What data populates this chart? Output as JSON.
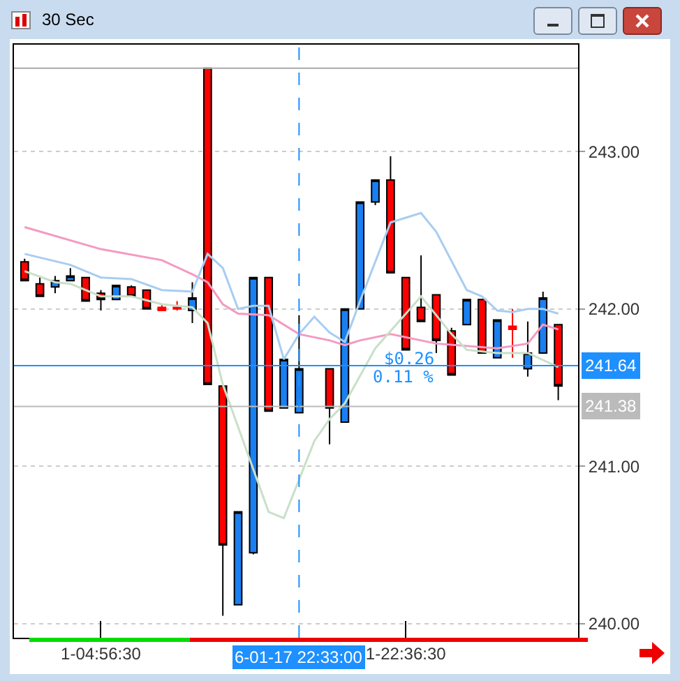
{
  "chart_data": {
    "type": "candlestick",
    "title": "30 Sec",
    "categories": [
      null,
      null,
      null,
      null,
      null,
      "1-04:56:30",
      null,
      null,
      null,
      null,
      null,
      null,
      null,
      null,
      null,
      null,
      null,
      null,
      "6-01-17 22:33:00",
      null,
      null,
      null,
      null,
      null,
      null,
      "1-22:36:30",
      null,
      null,
      null,
      null,
      null,
      null,
      null,
      null,
      null,
      null
    ],
    "ohlc": [
      [
        242.3,
        242.32,
        242.18,
        242.18
      ],
      [
        242.16,
        242.21,
        242.08,
        242.08
      ],
      [
        242.14,
        242.21,
        242.1,
        242.18
      ],
      [
        242.18,
        242.26,
        242.18,
        242.21
      ],
      [
        242.2,
        242.2,
        242.05,
        242.05
      ],
      [
        242.1,
        242.12,
        241.99,
        242.06
      ],
      [
        242.06,
        242.15,
        242.06,
        242.15
      ],
      [
        242.14,
        242.15,
        242.08,
        242.08
      ],
      [
        242.12,
        242.12,
        242.0,
        242.0
      ],
      [
        242.01,
        242.03,
        241.99,
        241.99
      ],
      [
        242.01,
        242.05,
        241.99,
        242.0
      ],
      [
        241.99,
        242.17,
        241.91,
        242.07
      ],
      [
        243.53,
        243.53,
        241.52,
        241.52
      ],
      [
        241.51,
        241.51,
        240.05,
        240.5
      ],
      [
        240.12,
        240.71,
        240.12,
        240.71
      ],
      [
        240.45,
        242.2,
        240.44,
        242.2
      ],
      [
        242.2,
        242.2,
        241.35,
        241.35
      ],
      [
        241.37,
        241.68,
        241.37,
        241.68
      ],
      [
        241.34,
        241.96,
        241.34,
        241.62
      ],
      null,
      [
        241.62,
        241.62,
        241.14,
        241.37
      ],
      [
        241.28,
        242.0,
        241.28,
        242.0
      ],
      [
        242.0,
        242.68,
        242.0,
        242.68
      ],
      [
        242.68,
        242.82,
        242.66,
        242.82
      ],
      [
        242.82,
        242.97,
        242.23,
        242.23
      ],
      [
        242.2,
        242.2,
        241.74,
        241.74
      ],
      [
        242.01,
        242.34,
        241.92,
        241.92
      ],
      [
        242.09,
        242.09,
        241.72,
        241.8
      ],
      [
        241.86,
        241.88,
        241.58,
        241.58
      ],
      [
        241.9,
        242.06,
        241.9,
        242.06
      ],
      [
        242.06,
        242.06,
        241.72,
        241.72
      ],
      [
        241.69,
        241.93,
        241.69,
        241.93
      ],
      [
        241.89,
        242.0,
        241.69,
        241.87
      ],
      [
        241.62,
        241.92,
        241.57,
        241.72
      ],
      [
        241.72,
        242.11,
        241.72,
        242.07
      ],
      [
        241.9,
        241.9,
        241.42,
        241.51
      ]
    ],
    "colors": [
      "#ff0000",
      "#ff0000",
      "#1a7ff0",
      "#1a7ff0",
      "#ff0000",
      "#ff0000",
      "#1a7ff0",
      "#ff0000",
      "#ff0000",
      "#ff0000",
      "#ff0000",
      "#1a7ff0",
      "#ff0000",
      "#ff0000",
      "#1a7ff0",
      "#1a7ff0",
      "#ff0000",
      "#1a7ff0",
      "#1a7ff0",
      null,
      "#ff0000",
      "#1a7ff0",
      "#1a7ff0",
      "#1a7ff0",
      "#ff0000",
      "#ff0000",
      "#ff0000",
      "#ff0000",
      "#ff0000",
      "#1a7ff0",
      "#ff0000",
      "#1a7ff0",
      "#ff0000",
      "#1a7ff0",
      "#1a7ff0",
      "#ff0000"
    ],
    "series": [
      {
        "type": "line",
        "color": "#f49ac1",
        "values": [
          242.52,
          null,
          null,
          null,
          null,
          242.38,
          null,
          null,
          null,
          242.31,
          null,
          242.22,
          242.17,
          242.03,
          241.97,
          null,
          241.96,
          null,
          241.84,
          null,
          241.8,
          241.77,
          241.8,
          null,
          241.84,
          null,
          241.8,
          241.78,
          null,
          null,
          null,
          241.75,
          null,
          241.78,
          241.9,
          241.87
        ]
      },
      {
        "type": "line",
        "color": "#a9cdf0",
        "values": [
          242.35,
          null,
          null,
          242.28,
          null,
          242.2,
          null,
          242.19,
          null,
          242.12,
          null,
          242.11,
          242.35,
          242.26,
          242.0,
          242.02,
          242.02,
          241.68,
          241.84,
          241.95,
          241.85,
          241.79,
          242.05,
          242.3,
          242.55,
          null,
          242.61,
          242.49,
          null,
          242.12,
          242.08,
          241.99,
          241.98,
          242.0,
          242.0,
          241.97
        ]
      },
      {
        "type": "line",
        "color": "#c8e0c8",
        "values": [
          242.24,
          null,
          242.17,
          242.16,
          null,
          242.08,
          null,
          242.08,
          null,
          242.03,
          null,
          242.01,
          241.91,
          241.52,
          null,
          null,
          240.71,
          240.67,
          null,
          241.16,
          241.3,
          241.4,
          null,
          241.75,
          null,
          null,
          242.08,
          null,
          241.84,
          241.74,
          null,
          241.72,
          null,
          241.72,
          null,
          241.63
        ]
      }
    ],
    "ylim": [
      239.91,
      243.68
    ],
    "yticks": [
      {
        "value": 240,
        "label": "240.00"
      },
      {
        "value": 241,
        "label": "241.00"
      },
      {
        "value": 242,
        "label": "242.00"
      },
      {
        "value": 243,
        "label": "243.00"
      }
    ],
    "grid": "y",
    "ref_lines": [
      {
        "axis": "y",
        "value": 243.53,
        "label": null,
        "color": "#aaaaaa"
      },
      {
        "axis": "y",
        "value": 241.64,
        "label": "241.64",
        "color": "#1e90ff"
      },
      {
        "axis": "y",
        "value": 241.38,
        "label": "241.38",
        "color": "#bbbbbb"
      },
      {
        "axis": "x",
        "value": "6-01-17 22:33:00",
        "label": null,
        "color": "#1e90ff",
        "line_style": "dashed"
      }
    ],
    "annotations": [
      "$0.26",
      "0.11 %"
    ]
  }
}
